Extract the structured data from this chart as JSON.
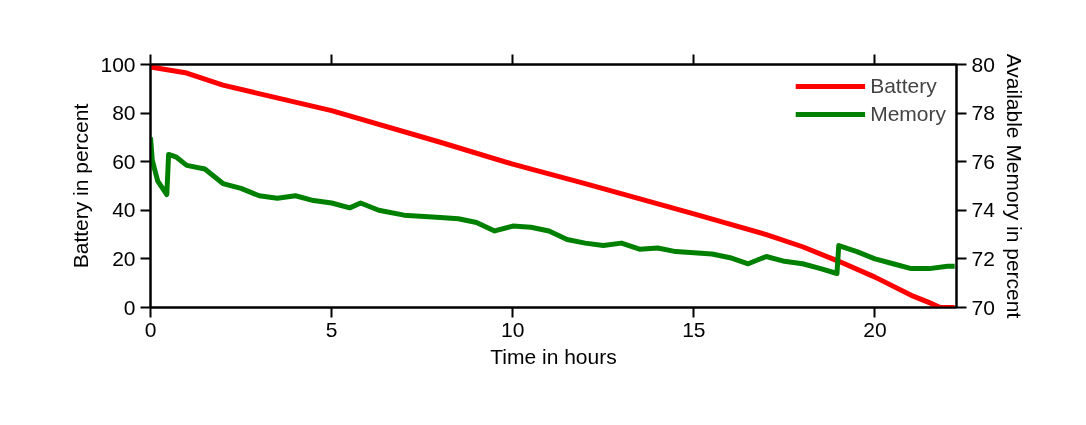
{
  "chart_data": {
    "type": "line",
    "xlabel": "Time in hours",
    "ylabel": "Battery in percent",
    "y2label": "Available Memory in percent",
    "xlim": [
      0,
      22.25
    ],
    "xticks": [
      0,
      5,
      10,
      15,
      20
    ],
    "ylim": [
      0,
      100
    ],
    "yticks": [
      0,
      20,
      40,
      60,
      80,
      100
    ],
    "y2lim": [
      70,
      80
    ],
    "y2ticks": [
      70,
      72,
      74,
      76,
      78,
      80
    ],
    "grid": false,
    "legend": "top right",
    "marker": "none",
    "line_style": "solid",
    "series": [
      {
        "name": "Battery",
        "color": "#ff0000",
        "x": [
          0,
          1,
          2,
          5,
          8,
          10,
          12,
          15,
          17,
          18,
          19,
          20,
          21,
          21.5,
          21.8,
          22.2
        ],
        "values": [
          99,
          96.5,
          91.5,
          81,
          68,
          59,
          51,
          38.5,
          30,
          25,
          19,
          12.5,
          5,
          2,
          0,
          0
        ]
      },
      {
        "name": "Memory",
        "color": "#008000",
        "axis": "y2",
        "x": [
          0,
          0.05,
          0.2,
          0.45,
          0.5,
          0.7,
          1.0,
          1.5,
          2.0,
          2.5,
          3.0,
          3.5,
          4.0,
          4.5,
          5.0,
          5.5,
          5.8,
          6.3,
          7.0,
          8.0,
          8.5,
          9.0,
          9.5,
          10.0,
          10.5,
          11.0,
          11.5,
          12.0,
          12.5,
          13.0,
          13.5,
          14.0,
          14.5,
          15.0,
          15.5,
          16.0,
          16.5,
          17.0,
          17.5,
          18.0,
          18.5,
          18.95,
          19.0,
          19.5,
          20.0,
          20.5,
          21.0,
          21.5,
          22.0,
          22.2
        ],
        "values": [
          77.0,
          76.05,
          75.2,
          74.65,
          76.3,
          76.2,
          75.85,
          75.7,
          75.1,
          74.9,
          74.6,
          74.5,
          74.6,
          74.4,
          74.3,
          74.1,
          74.3,
          74.0,
          73.8,
          73.7,
          73.65,
          73.5,
          73.15,
          73.35,
          73.3,
          73.15,
          72.8,
          72.65,
          72.55,
          72.65,
          72.4,
          72.45,
          72.3,
          72.25,
          72.2,
          72.05,
          71.8,
          72.1,
          71.9,
          71.8,
          71.6,
          71.4,
          72.55,
          72.3,
          72.0,
          71.8,
          71.6,
          71.6,
          71.7,
          71.7
        ]
      }
    ]
  }
}
